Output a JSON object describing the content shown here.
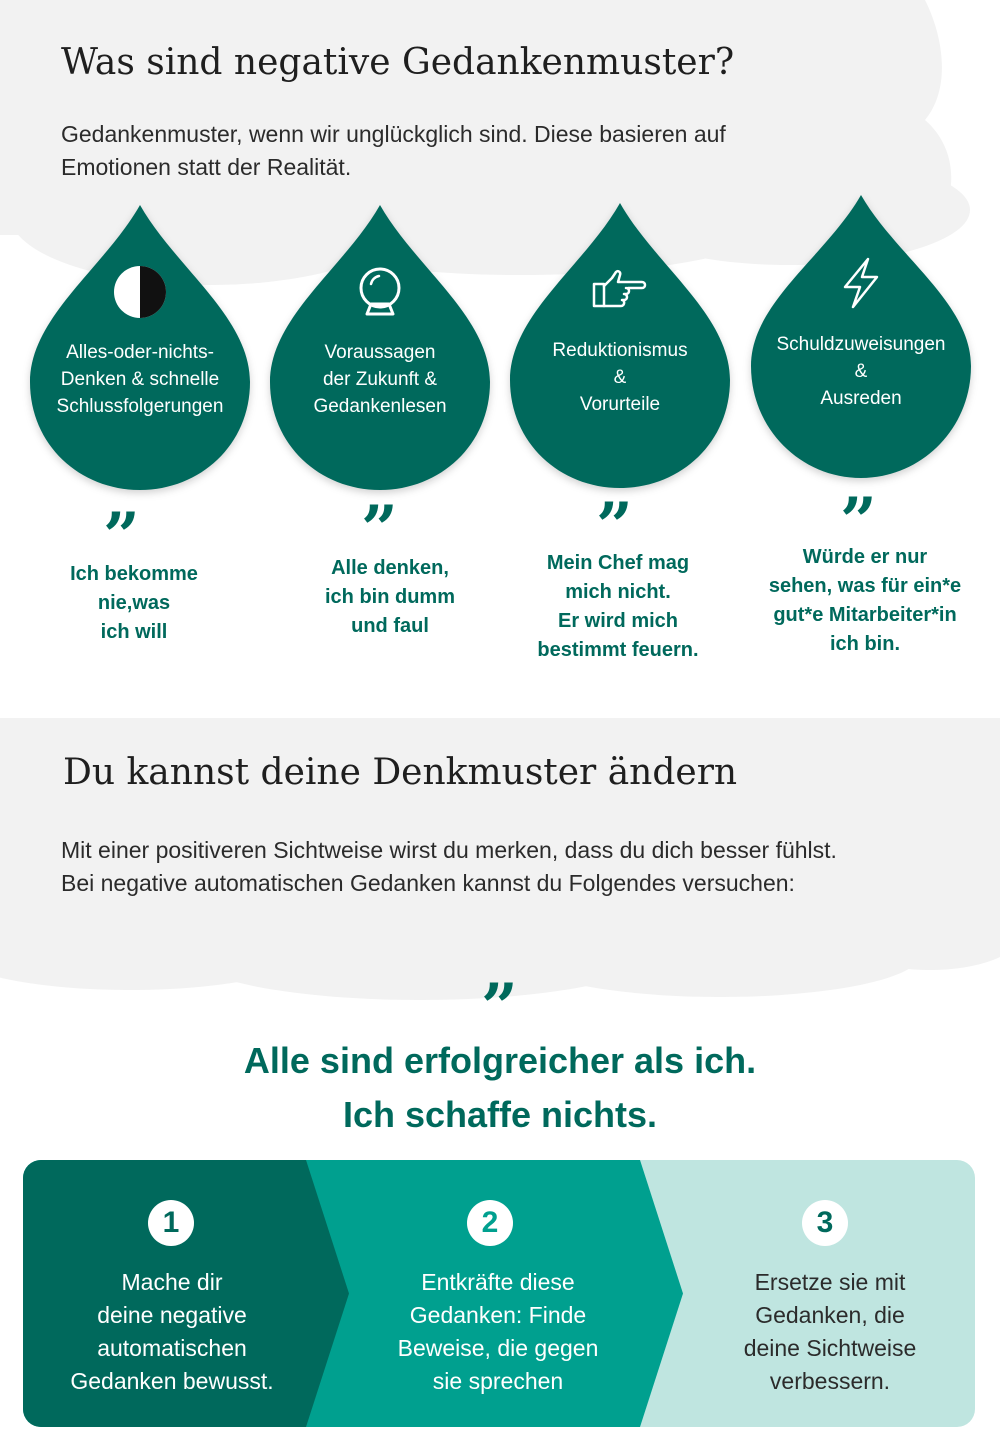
{
  "section1": {
    "title": "Was sind negative Gedankenmuster?",
    "lead_line1": "Gedankenmuster, wenn wir unglückglich sind. Diese basieren auf",
    "lead_line2": "Emotionen statt der Realität."
  },
  "patterns": [
    {
      "icon": "half-circle-icon",
      "label": [
        "Alles-oder-nichts-",
        "Denken & schnelle",
        "Schlussfolgerungen"
      ],
      "quote": [
        "Ich bekomme",
        "nie,was",
        "ich will"
      ]
    },
    {
      "icon": "crystal-ball-icon",
      "label": [
        "Voraussagen",
        "der Zukunft &",
        "Gedankenlesen"
      ],
      "quote": [
        "Alle denken,",
        "ich bin dumm",
        "und faul"
      ]
    },
    {
      "icon": "pointing-hand-icon",
      "label": [
        "Reduktionismus",
        "&",
        "Vorurteile"
      ],
      "quote": [
        "Mein Chef mag",
        "mich nicht.",
        "Er wird mich",
        "bestimmt feuern."
      ]
    },
    {
      "icon": "lightning-icon",
      "label": [
        "Schuldzuweisungen",
        "&",
        "Ausreden"
      ],
      "quote": [
        "Würde er nur",
        "sehen, was für ein*e",
        "gut*e Mitarbeiter*in",
        "ich bin."
      ]
    }
  ],
  "quote_mark": "”",
  "section2": {
    "title": "Du kannst deine Denkmuster ändern",
    "lead_line1": "Mit einer positiveren Sichtweise wirst du merken, dass du dich besser fühlst.",
    "lead_line2": "Bei negative automatischen Gedanken kannst du Folgendes versuchen:",
    "big_quote_line1": "Alle sind erfolgreicher als ich.",
    "big_quote_line2": "Ich schaffe nichts."
  },
  "steps": [
    {
      "number": "1",
      "text": [
        "Mache dir",
        "deine negative",
        "automatischen",
        "Gedanken bewusst."
      ]
    },
    {
      "number": "2",
      "text": [
        "Entkräfte diese",
        "Gedanken: Finde",
        "Beweise, die gegen",
        "sie sprechen"
      ]
    },
    {
      "number": "3",
      "text": [
        "Ersetze sie mit",
        "Gedanken, die",
        "deine Sichtweise",
        "verbessern."
      ]
    }
  ],
  "colors": {
    "dark_teal": "#00695c",
    "mid_teal": "#00a08f",
    "light_teal": "#bfe5e0",
    "cloud_grey": "#f2f2f2"
  }
}
